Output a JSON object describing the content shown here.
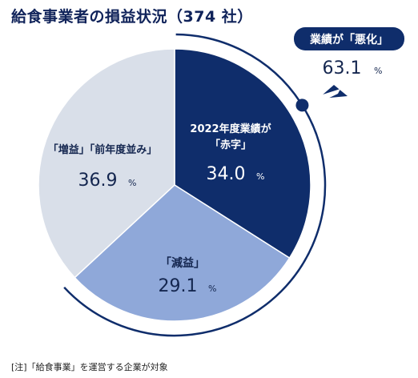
{
  "title": "給食事業者の損益状況（374 社）",
  "note": "[注]「給食事業」を運営する企業が対象",
  "colors": {
    "deficit": "#0f2d6b",
    "decrease": "#8fa8d9",
    "flat_or_up": "#d9dfe9",
    "callout_fill": "#0f2d6b",
    "white": "#ffffff",
    "dark_text": "#14264f"
  },
  "callout": {
    "label": "業績が「悪化」",
    "value": "63.1",
    "unit": "%"
  },
  "chart_data": {
    "type": "pie",
    "title": "給食事業者の損益状況（374 社）",
    "unit": "%",
    "start": "top, clockwise",
    "slices": [
      {
        "label_lines": [
          "2022年度業績が",
          "「赤字」"
        ],
        "value": 34.0,
        "color": "#0f2d6b",
        "text_color": "#ffffff"
      },
      {
        "label_lines": [
          "「減益」"
        ],
        "value": 29.1,
        "color": "#8fa8d9",
        "text_color": "#14264f"
      },
      {
        "label_lines": [
          "「増益」「前年度並み」"
        ],
        "value": 36.9,
        "color": "#d9dfe9",
        "text_color": "#14264f"
      }
    ],
    "bracket": {
      "label": "業績が「悪化」",
      "value": 63.1,
      "covers": [
        "「赤字」",
        "「減益」"
      ]
    }
  }
}
